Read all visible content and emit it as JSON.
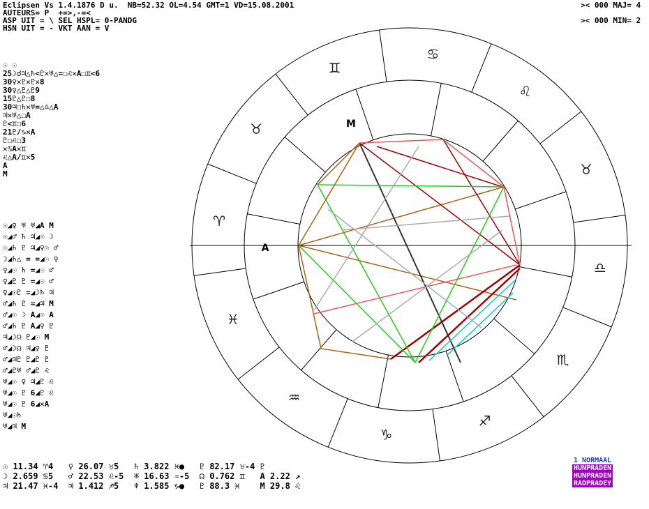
{
  "header": {
    "line1": "Eclipsen Vs 1.4.1876 D u.  NB=52.32 OL=4.54 GMT=1 VD=15.08.2001",
    "line2": "AUTEURS= P  +=>,-=<",
    "line3": "ASP UIT = \\ SEL HSPL= 0-PANDG",
    "line4": "HSN UIT = - VKT AAN = V",
    "right1": ">< 000 MAJ= 4",
    "right2": ">< 000 MIN= 2"
  },
  "aspect_rows": [
    "☉ ☉",
    "25☽☌♃△♄<♇✕♅△=☐♌✕A☐♊<6",
    "30♀✕♇✕♇✕8",
    "30♀△♇△♇9",
    "15♇△♇☐8",
    "30♃☐♄✕♅=△♎△A",
    "♃✕♅△☐A",
    "♇<♊☐6",
    "21♇/♑✕A",
    "♇☐♌☐3",
    "✕♋A✕♊",
    "♌△A/♊✕5",
    "A",
    "M"
  ],
  "planet_rows": [
    "☉◢♀ ♅ ♅◢A M",
    "☉◢♂ ♄ ♃◢☉ ☽",
    "☉◢♄ ♇ ♃◢♀☉ ♂",
    "☽◢♄△ = =◢☉ ♀",
    "♀◢☉ ♄ =◢☉ ♂",
    "♀◢♇ ♇ =◢☉ ♂",
    "♀◢☉♇ =◢☽♄ ♃",
    "♂◢♄ ♇ =◢♃ M",
    "♂◢☉ ☽ A◢☉ A",
    "♂◢♄ ♇ A◢♀ ♇",
    "♃◢☽☊ ♇◢☉ M",
    "♂◢☽☊ ♃◢♀ ♇",
    "♂◢♃♇ ♇◢♇ ♇",
    "♂◢♇♅ ♂◢♇ ♌",
    "♅◢☉ ♀ ♃◢♇ ♌",
    "♅◢☉ ♇ 6◢♇ ♌",
    "♅◢☉ ♇ 6◢✕A",
    "♅◢☉♄",
    "♅◢♃ M"
  ],
  "cusps": [
    "A",
    "M"
  ],
  "bottom_rows": [
    "☉ 11.34 ♈4   ♀ 26.07 ♉5   ♄ 3.822 ♓●   ♇ 82.17 ♉-4 ♇",
    "☽ 2.659 ♋5   ♂ 22.53 ♌-5  ♅ 16.63 ♒-5  ☊ 0.762 ♊   A 2.22 ↗",
    "♃ 21.47 ♓-4  ♃ 1.412 ♐5   ♆ 1.585 ♑●   ♇ 88.3 ♓    M 29.8 ♌"
  ],
  "menu": [
    "1 NORMAAL",
    "HUNPRADEN",
    "HUNPRADEN",
    "RADPRADEY"
  ],
  "zodiac": [
    "♉",
    "♌",
    "♋",
    "♊",
    "♉",
    "♈",
    "♓",
    "♒",
    "♑",
    "♐",
    "♏",
    "♎"
  ]
}
